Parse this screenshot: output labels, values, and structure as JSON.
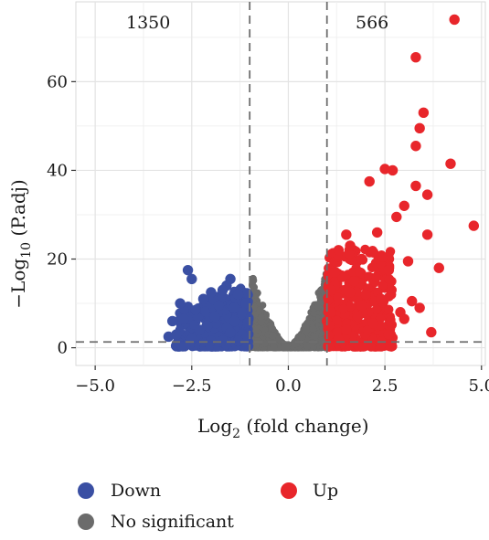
{
  "chart_data": {
    "type": "scatter",
    "title": "",
    "xlabel_main": "Log",
    "xlabel_sub": "2",
    "xlabel_rest": " (fold change)",
    "ylabel_main": "−Log",
    "ylabel_sub": "10",
    "ylabel_rest": " (P.adj)",
    "xlim": [
      -5.5,
      5.1
    ],
    "ylim": [
      -4,
      78
    ],
    "x_ticks": [
      -5.0,
      -2.5,
      0.0,
      2.5,
      5.0
    ],
    "x_tick_labels": [
      "−5.0",
      "−2.5",
      "0.0",
      "2.5",
      "5.0"
    ],
    "y_ticks": [
      0,
      20,
      40,
      60
    ],
    "y_tick_labels": [
      "0",
      "20",
      "40",
      "60"
    ],
    "grid": true,
    "thresholds": {
      "fold_change": [
        -1,
        1
      ],
      "p_adj": 1.3
    },
    "counts": {
      "down": "1350",
      "up": "566"
    },
    "legend": {
      "position": "bottom",
      "items": [
        {
          "label": "Down",
          "color": "#3a4fa3"
        },
        {
          "label": "Up",
          "color": "#e8262b"
        },
        {
          "label": "No significant",
          "color": "#6b6b6b"
        }
      ]
    },
    "series": [
      {
        "name": "Up",
        "color": "#e8262b",
        "x": [
          4.3,
          3.3,
          3.5,
          3.4,
          3.3,
          4.2,
          2.7,
          2.5,
          3.3,
          2.1,
          3.6,
          3.0,
          2.8,
          4.8,
          2.3,
          1.5,
          3.6,
          1.6,
          1.3,
          1.9,
          2.2,
          3.1,
          3.9,
          2.6,
          1.4,
          1.7,
          1.2,
          1.1,
          2.0,
          2.4,
          3.2,
          3.4,
          2.9,
          1.8,
          1.0,
          1.05,
          1.5,
          2.6,
          3.7,
          1.3,
          2.2,
          1.9,
          3.0,
          1.6,
          1.2
        ],
        "y": [
          74,
          65.5,
          53,
          49.5,
          45.5,
          41.5,
          40,
          40.3,
          36.5,
          37.5,
          34.5,
          32,
          29.5,
          27.5,
          26,
          25.5,
          25.5,
          23,
          22,
          20,
          21.5,
          19.5,
          18,
          17.5,
          16,
          15,
          14,
          13,
          12,
          11,
          10.5,
          9,
          8,
          7,
          6,
          5,
          4,
          3,
          3.5,
          2,
          5.5,
          9.5,
          6.5,
          12.5,
          17
        ]
      },
      {
        "name": "Down",
        "color": "#3a4fa3",
        "x": [
          -2.6,
          -2.5,
          -1.5,
          -1.6,
          -1.7,
          -2.0,
          -2.2,
          -1.3,
          -1.1,
          -2.8,
          -1.8,
          -2.4,
          -1.2,
          -1.9,
          -3.0,
          -2.7,
          -1.4,
          -1.05,
          -2.1,
          -1.6,
          -2.3,
          -1.5,
          -1.2,
          -1.8,
          -2.9,
          -1.1,
          -2.5,
          -1.7,
          -1.3,
          -3.1,
          -2.0,
          -1.4
        ],
        "y": [
          17.5,
          15.5,
          15.5,
          14,
          13,
          12.5,
          11,
          12,
          10,
          10,
          9.5,
          8.5,
          8,
          7,
          6,
          6.5,
          6,
          5.5,
          5,
          4.5,
          4,
          3.5,
          3,
          2.5,
          3,
          2,
          2,
          1.6,
          1.5,
          2.5,
          1.5,
          9
        ]
      }
    ]
  }
}
